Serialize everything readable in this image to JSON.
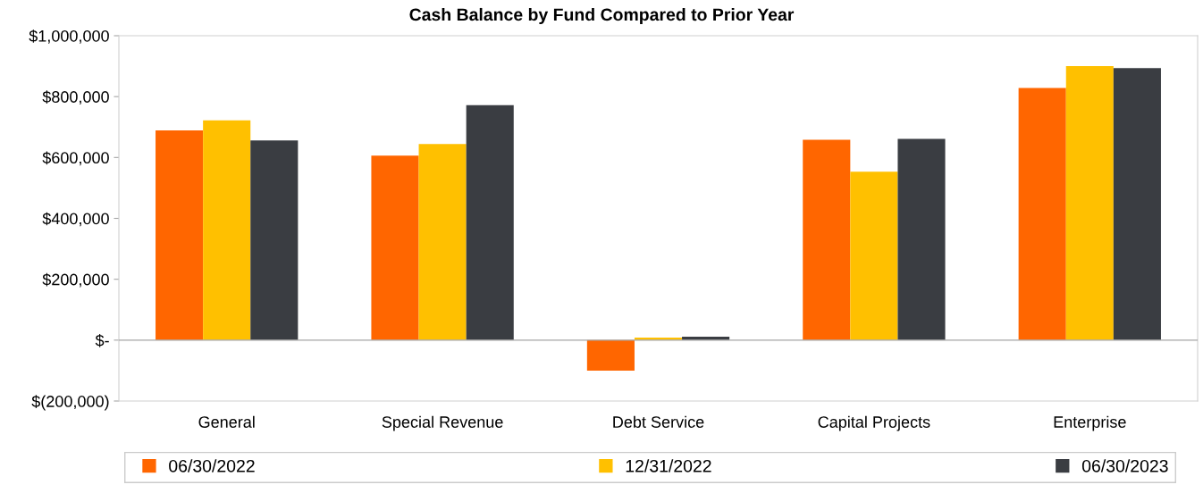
{
  "chart_data": {
    "type": "bar",
    "title": "Cash Balance by Fund Compared to Prior Year",
    "categories": [
      "General",
      "Special Revenue",
      "Debt Service",
      "Capital Projects",
      "Enterprise"
    ],
    "series": [
      {
        "name": "06/30/2022",
        "color": "#ff6600",
        "values": [
          689000,
          606000,
          -100000,
          658000,
          828000
        ]
      },
      {
        "name": "12/31/2022",
        "color": "#ffc000",
        "values": [
          722000,
          644000,
          8000,
          553000,
          900000
        ]
      },
      {
        "name": "06/30/2023",
        "color": "#3a3d42",
        "values": [
          656000,
          772000,
          11000,
          661000,
          894000
        ]
      }
    ],
    "ylim": [
      -200000,
      1000000
    ],
    "yticks": [
      {
        "value": -200000,
        "label": "$(200,000)"
      },
      {
        "value": 0,
        "label": "$-"
      },
      {
        "value": 200000,
        "label": "$200,000"
      },
      {
        "value": 400000,
        "label": "$400,000"
      },
      {
        "value": 600000,
        "label": "$600,000"
      },
      {
        "value": 800000,
        "label": "$800,000"
      },
      {
        "value": 1000000,
        "label": "$1,000,000"
      }
    ],
    "ref_lines": [
      {
        "axis": "y",
        "value": 0,
        "color": "#a6a6a6"
      }
    ],
    "grid": false,
    "legend": "bottom"
  }
}
